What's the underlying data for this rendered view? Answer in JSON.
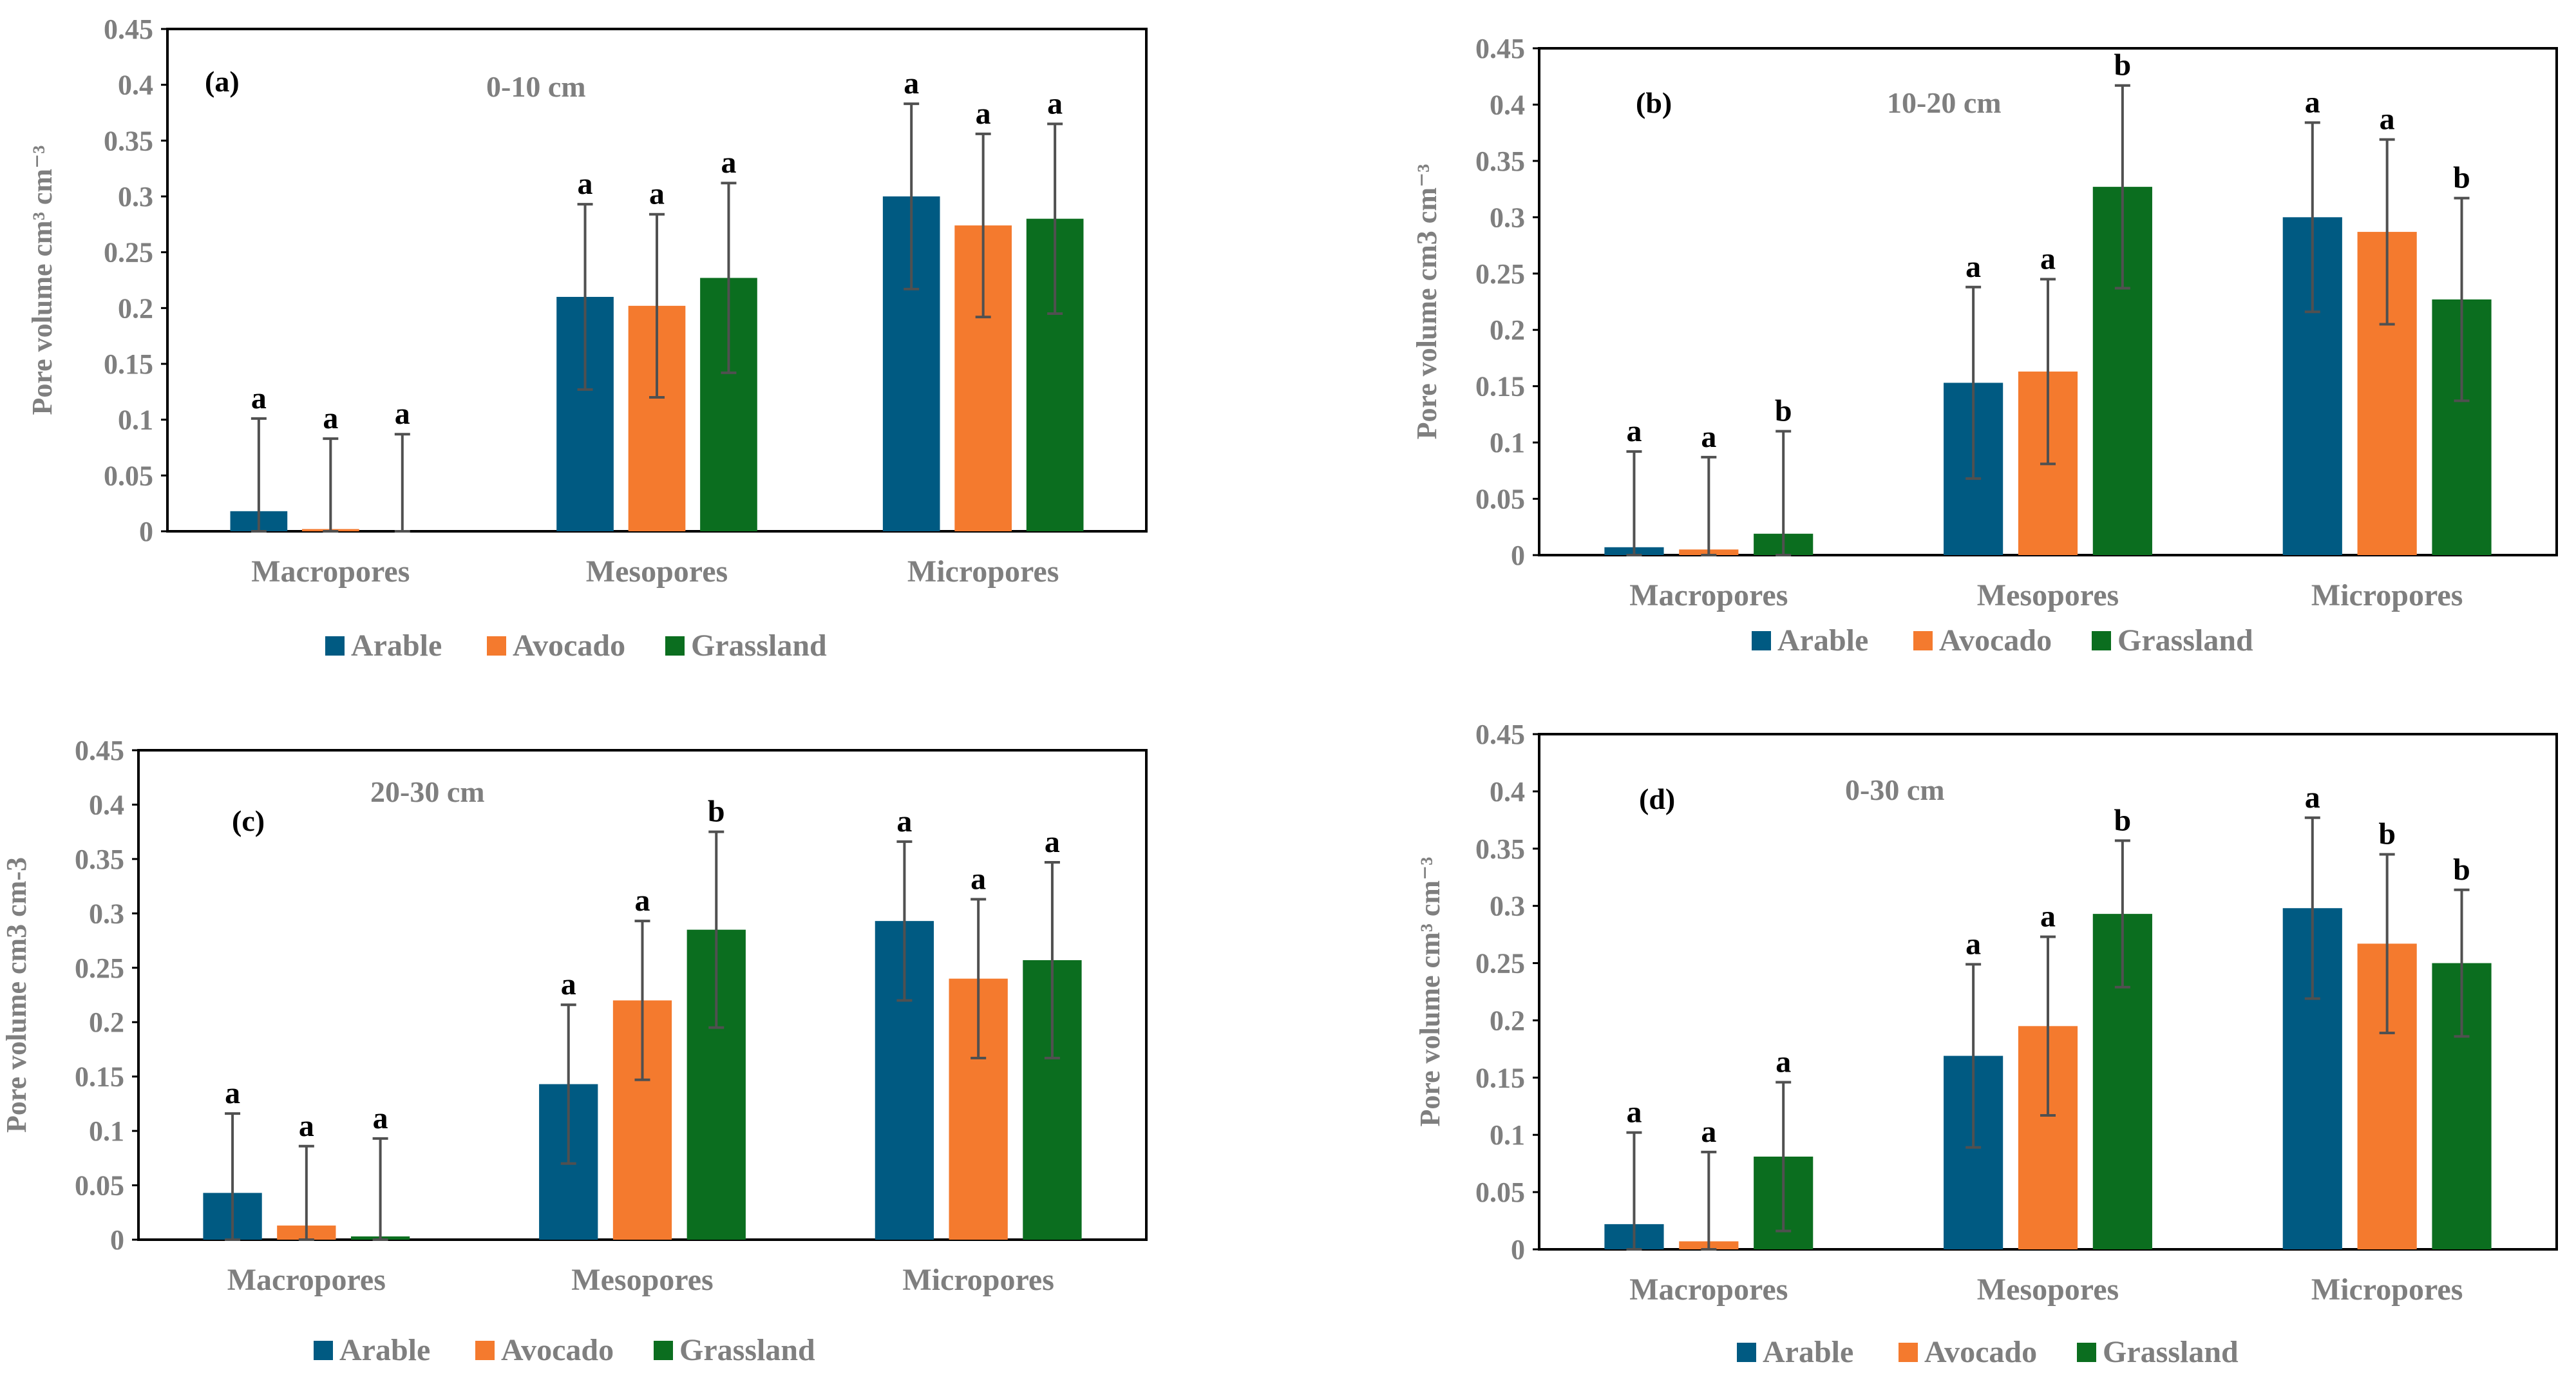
{
  "colors": {
    "Arable": "#005a82",
    "Avocado": "#f47a2e",
    "Grassland": "#0b6e1f",
    "axis": "#7f7f7f",
    "error_bar": "#505050"
  },
  "chart_data": [
    {
      "type": "bar",
      "panel_label": "(a)",
      "depth_label": "0-10 cm",
      "ylabel": "Pore volume cm³ cm⁻³",
      "ylim": [
        0,
        0.45
      ],
      "yticks": [
        "0",
        "0.05",
        "0.1",
        "0.15",
        "0.2",
        "0.25",
        "0.3",
        "0.35",
        "0.4",
        "0.45"
      ],
      "categories": [
        "Macropores",
        "Mesopores",
        "Micropores"
      ],
      "series": [
        {
          "name": "Arable",
          "values": [
            0.018,
            0.21,
            0.3
          ],
          "errors": [
            0.083,
            0.083,
            0.083
          ],
          "letters": [
            "a",
            "a",
            "a"
          ]
        },
        {
          "name": "Avocado",
          "values": [
            0.002,
            0.202,
            0.274
          ],
          "errors": [
            0.081,
            0.082,
            0.082
          ],
          "letters": [
            "a",
            "a",
            "a"
          ]
        },
        {
          "name": "Grassland",
          "values": [
            0.0,
            0.227,
            0.28
          ],
          "errors": [
            0.087,
            0.085,
            0.085
          ],
          "letters": [
            "a",
            "a",
            "a"
          ]
        }
      ],
      "legend": {
        "position": "bottom",
        "items": [
          "Arable",
          "Avocado",
          "Grassland"
        ]
      }
    },
    {
      "type": "bar",
      "panel_label": "(b)",
      "depth_label": "10-20 cm",
      "ylabel": "Pore volume cm3 cm⁻³",
      "ylim": [
        0,
        0.45
      ],
      "yticks": [
        "0",
        "0.05",
        "0.1",
        "0.15",
        "0.2",
        "0.25",
        "0.3",
        "0.35",
        "0.4",
        "0.45"
      ],
      "categories": [
        "Macropores",
        "Mesopores",
        "Micropores"
      ],
      "series": [
        {
          "name": "Arable",
          "values": [
            0.007,
            0.153,
            0.3
          ],
          "errors": [
            0.085,
            0.085,
            0.084
          ],
          "letters": [
            "a",
            "a",
            "a"
          ]
        },
        {
          "name": "Avocado",
          "values": [
            0.005,
            0.163,
            0.287
          ],
          "errors": [
            0.082,
            0.082,
            0.082
          ],
          "letters": [
            "a",
            "a",
            "a"
          ]
        },
        {
          "name": "Grassland",
          "values": [
            0.019,
            0.327,
            0.227
          ],
          "errors": [
            0.091,
            0.09,
            0.09
          ],
          "letters": [
            "b",
            "b",
            "b"
          ]
        }
      ],
      "legend": {
        "position": "bottom",
        "items": [
          "Arable",
          "Avocado",
          "Grassland"
        ]
      }
    },
    {
      "type": "bar",
      "panel_label": "(c)",
      "depth_label": "20-30 cm",
      "ylabel": "Pore volume cm3 cm-3",
      "ylim": [
        0,
        0.45
      ],
      "yticks": [
        "0",
        "0.05",
        "0.1",
        "0.15",
        "0.2",
        "0.25",
        "0.3",
        "0.35",
        "0.4",
        "0.45"
      ],
      "categories": [
        "Macropores",
        "Mesopores",
        "Micropores"
      ],
      "series": [
        {
          "name": "Arable",
          "values": [
            0.043,
            0.143,
            0.293
          ],
          "errors": [
            0.073,
            0.073,
            0.073
          ],
          "letters": [
            "a",
            "a",
            "a"
          ]
        },
        {
          "name": "Avocado",
          "values": [
            0.013,
            0.22,
            0.24
          ],
          "errors": [
            0.073,
            0.073,
            0.073
          ],
          "letters": [
            "a",
            "a",
            "a"
          ]
        },
        {
          "name": "Grassland",
          "values": [
            0.003,
            0.285,
            0.257
          ],
          "errors": [
            0.09,
            0.09,
            0.09
          ],
          "letters": [
            "a",
            "b",
            "a"
          ]
        }
      ],
      "legend": {
        "position": "bottom",
        "items": [
          "Arable",
          "Avocado",
          "Grassland"
        ]
      }
    },
    {
      "type": "bar",
      "panel_label": "(d)",
      "depth_label": "0-30 cm",
      "ylabel": "Pore volume cm³ cm⁻³",
      "ylim": [
        0,
        0.45
      ],
      "yticks": [
        "0",
        "0.05",
        "0.1",
        "0.15",
        "0.2",
        "0.25",
        "0.3",
        "0.35",
        "0.4",
        "0.45"
      ],
      "categories": [
        "Macropores",
        "Mesopores",
        "Micropores"
      ],
      "series": [
        {
          "name": "Arable",
          "values": [
            0.022,
            0.169,
            0.298
          ],
          "errors": [
            0.08,
            0.08,
            0.079
          ],
          "letters": [
            "a",
            "a",
            "a"
          ]
        },
        {
          "name": "Avocado",
          "values": [
            0.007,
            0.195,
            0.267
          ],
          "errors": [
            0.078,
            0.078,
            0.078
          ],
          "letters": [
            "a",
            "a",
            "b"
          ]
        },
        {
          "name": "Grassland",
          "values": [
            0.081,
            0.293,
            0.25
          ],
          "errors": [
            0.065,
            0.064,
            0.064
          ],
          "letters": [
            "a",
            "b",
            "b"
          ]
        }
      ],
      "legend": {
        "position": "bottom",
        "items": [
          "Arable",
          "Avocado",
          "Grassland"
        ]
      }
    }
  ]
}
